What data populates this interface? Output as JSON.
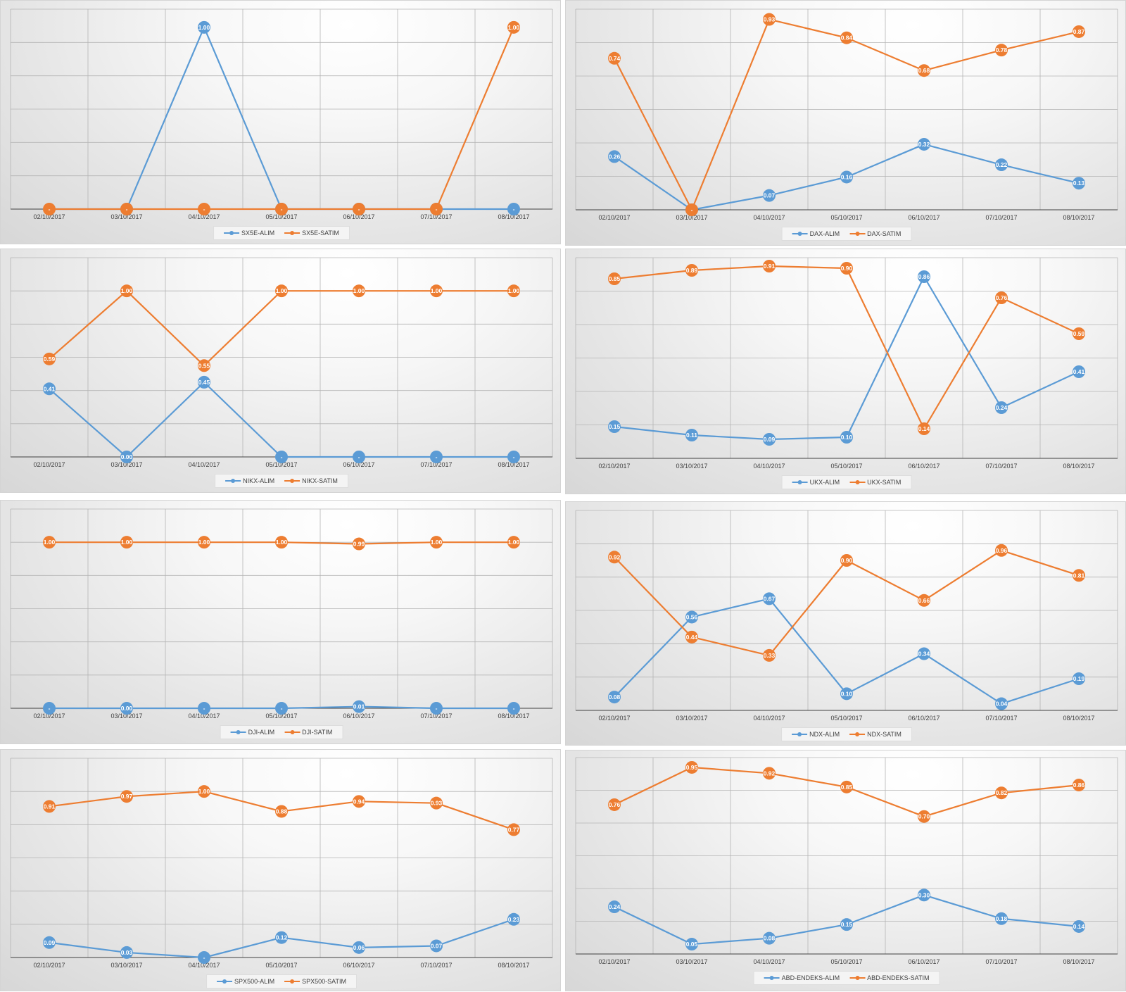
{
  "colors": {
    "alim": "#5b9bd5",
    "satim": "#ed7d31",
    "grid": "#b4b4b4",
    "axis": "#404040"
  },
  "chart_data": [
    {
      "type": "line",
      "categories": [
        "02/10/2017",
        "03/10/2017",
        "04/10/2017",
        "05/10/2017",
        "06/10/2017",
        "07/10/2017",
        "08/10/2017"
      ],
      "series": [
        {
          "name": "SX5E-ALIM",
          "values": [
            0,
            0,
            1,
            0,
            0,
            0,
            0
          ],
          "labels": [
            "",
            "-",
            "1.00",
            "-",
            "-",
            "-",
            "-"
          ]
        },
        {
          "name": "SX5E-SATIM",
          "values": [
            0,
            0,
            0,
            0,
            0,
            0,
            1
          ],
          "labels": [
            "-",
            "-",
            "-",
            "-",
            "-",
            "-",
            "1.00"
          ]
        }
      ],
      "ylim": [
        0,
        1.1
      ],
      "grid": true,
      "legend": "bottom"
    },
    {
      "type": "line",
      "categories": [
        "02/10/2017",
        "03/10/2017",
        "04/10/2017",
        "05/10/2017",
        "06/10/2017",
        "07/10/2017",
        "08/10/2017"
      ],
      "series": [
        {
          "name": "DAX-ALIM",
          "values": [
            0.26,
            0,
            0.07,
            0.16,
            0.32,
            0.22,
            0.13
          ],
          "labels": [
            "0.26",
            "-",
            "0.07",
            "0.16",
            "0.32",
            "0.22",
            "0.13"
          ]
        },
        {
          "name": "DAX-SATIM",
          "values": [
            0.74,
            0,
            0.93,
            0.84,
            0.68,
            0.78,
            0.87
          ],
          "labels": [
            "0.74",
            "-",
            "0.93",
            "0.84",
            "0.68",
            "0.78",
            "0.87"
          ]
        }
      ],
      "ylim": [
        0,
        0.98
      ],
      "grid": true,
      "legend": "bottom"
    },
    {
      "type": "line",
      "categories": [
        "02/10/2017",
        "03/10/2017",
        "04/10/2017",
        "05/10/2017",
        "06/10/2017",
        "07/10/2017",
        "08/10/2017"
      ],
      "series": [
        {
          "name": "NIKX-ALIM",
          "values": [
            0.41,
            0,
            0.45,
            0,
            0,
            0,
            0
          ],
          "labels": [
            "0.41",
            "0.00",
            "0.45",
            "-",
            "-",
            "-",
            "-"
          ]
        },
        {
          "name": "NIKX-SATIM",
          "values": [
            0.59,
            1,
            0.55,
            1,
            1,
            1,
            1
          ],
          "labels": [
            "0.59",
            "1.00",
            "0.55",
            "1.00",
            "1.00",
            "1.00",
            "1.00"
          ]
        }
      ],
      "ylim": [
        0,
        1.2
      ],
      "grid": true,
      "legend": "bottom"
    },
    {
      "type": "line",
      "categories": [
        "02/10/2017",
        "03/10/2017",
        "04/10/2017",
        "05/10/2017",
        "06/10/2017",
        "07/10/2017",
        "08/10/2017"
      ],
      "series": [
        {
          "name": "UKX-ALIM",
          "values": [
            0.15,
            0.11,
            0.09,
            0.1,
            0.86,
            0.24,
            0.41
          ],
          "labels": [
            "0.15",
            "0.11",
            "0.09",
            "0.10",
            "0.86",
            "0.24",
            "0.41"
          ]
        },
        {
          "name": "UKX-SATIM",
          "values": [
            0.85,
            0.89,
            0.91,
            0.9,
            0.14,
            0.76,
            0.59
          ],
          "labels": [
            "0.85",
            "0.89",
            "0.91",
            "0.90",
            "0.14",
            "0.76",
            "0.59"
          ]
        }
      ],
      "ylim": [
        0,
        0.95
      ],
      "grid": true,
      "legend": "bottom"
    },
    {
      "type": "line",
      "categories": [
        "02/10/2017",
        "03/10/2017",
        "04/10/2017",
        "05/10/2017",
        "06/10/2017",
        "07/10/2017",
        "08/10/2017"
      ],
      "series": [
        {
          "name": "DJI-ALIM",
          "values": [
            0,
            0,
            0,
            0,
            0.01,
            0,
            0
          ],
          "labels": [
            "-",
            "0.00",
            "-",
            "-",
            "0.01",
            "-",
            "-"
          ]
        },
        {
          "name": "DJI-SATIM",
          "values": [
            1,
            1,
            1,
            1,
            0.99,
            1,
            1
          ],
          "labels": [
            "1.00",
            "1.00",
            "1.00",
            "1.00",
            "0.99",
            "1.00",
            "1.00"
          ]
        }
      ],
      "ylim": [
        0,
        1.2
      ],
      "grid": true,
      "legend": "bottom"
    },
    {
      "type": "line",
      "categories": [
        "02/10/2017",
        "03/10/2017",
        "04/10/2017",
        "05/10/2017",
        "06/10/2017",
        "07/10/2017",
        "08/10/2017"
      ],
      "series": [
        {
          "name": "NDX-ALIM",
          "values": [
            0.08,
            0.56,
            0.67,
            0.1,
            0.34,
            0.04,
            0.19
          ],
          "labels": [
            "0.08",
            "0.56",
            "0.67",
            "0.10",
            "0.34",
            "0.04",
            "0.19"
          ]
        },
        {
          "name": "NDX-SATIM",
          "values": [
            0.92,
            0.44,
            0.33,
            0.9,
            0.66,
            0.96,
            0.81
          ],
          "labels": [
            "0.92",
            "0.44",
            "0.33",
            "0.90",
            "0.66",
            "0.96",
            "0.81"
          ]
        }
      ],
      "ylim": [
        0,
        1.2
      ],
      "grid": true,
      "legend": "bottom"
    },
    {
      "type": "line",
      "categories": [
        "02/10/2017",
        "03/10/2017",
        "04/10/2017",
        "05/10/2017",
        "06/10/2017",
        "07/10/2017",
        "08/10/2017"
      ],
      "series": [
        {
          "name": "SPX500-ALIM",
          "values": [
            0.09,
            0.03,
            0,
            0.12,
            0.06,
            0.07,
            0.23
          ],
          "labels": [
            "0.09",
            "0.03",
            "-",
            "0.12",
            "0.06",
            "0.07",
            "0.23"
          ]
        },
        {
          "name": "SPX500-SATIM",
          "values": [
            0.91,
            0.97,
            1,
            0.88,
            0.94,
            0.93,
            0.77
          ],
          "labels": [
            "0.91",
            "0.97",
            "1.00",
            "0.88",
            "0.94",
            "0.93",
            "0.77"
          ]
        }
      ],
      "ylim": [
        0,
        1.2
      ],
      "grid": true,
      "legend": "bottom"
    },
    {
      "type": "line",
      "categories": [
        "02/10/2017",
        "03/10/2017",
        "04/10/2017",
        "05/10/2017",
        "06/10/2017",
        "07/10/2017",
        "08/10/2017"
      ],
      "series": [
        {
          "name": "ABD-ENDEKS-ALIM",
          "values": [
            0.24,
            0.05,
            0.08,
            0.15,
            0.3,
            0.18,
            0.14
          ],
          "labels": [
            "0.24",
            "0.05",
            "0.08",
            "0.15",
            "0.30",
            "0.18",
            "0.14"
          ]
        },
        {
          "name": "ABD-ENDEKS-SATIM",
          "values": [
            0.76,
            0.95,
            0.92,
            0.85,
            0.7,
            0.82,
            0.86
          ],
          "labels": [
            "0.76",
            "0.95",
            "0.92",
            "0.85",
            "0.70",
            "0.82",
            "0.86"
          ]
        }
      ],
      "ylim": [
        0,
        1.0
      ],
      "grid": true,
      "legend": "bottom"
    }
  ]
}
